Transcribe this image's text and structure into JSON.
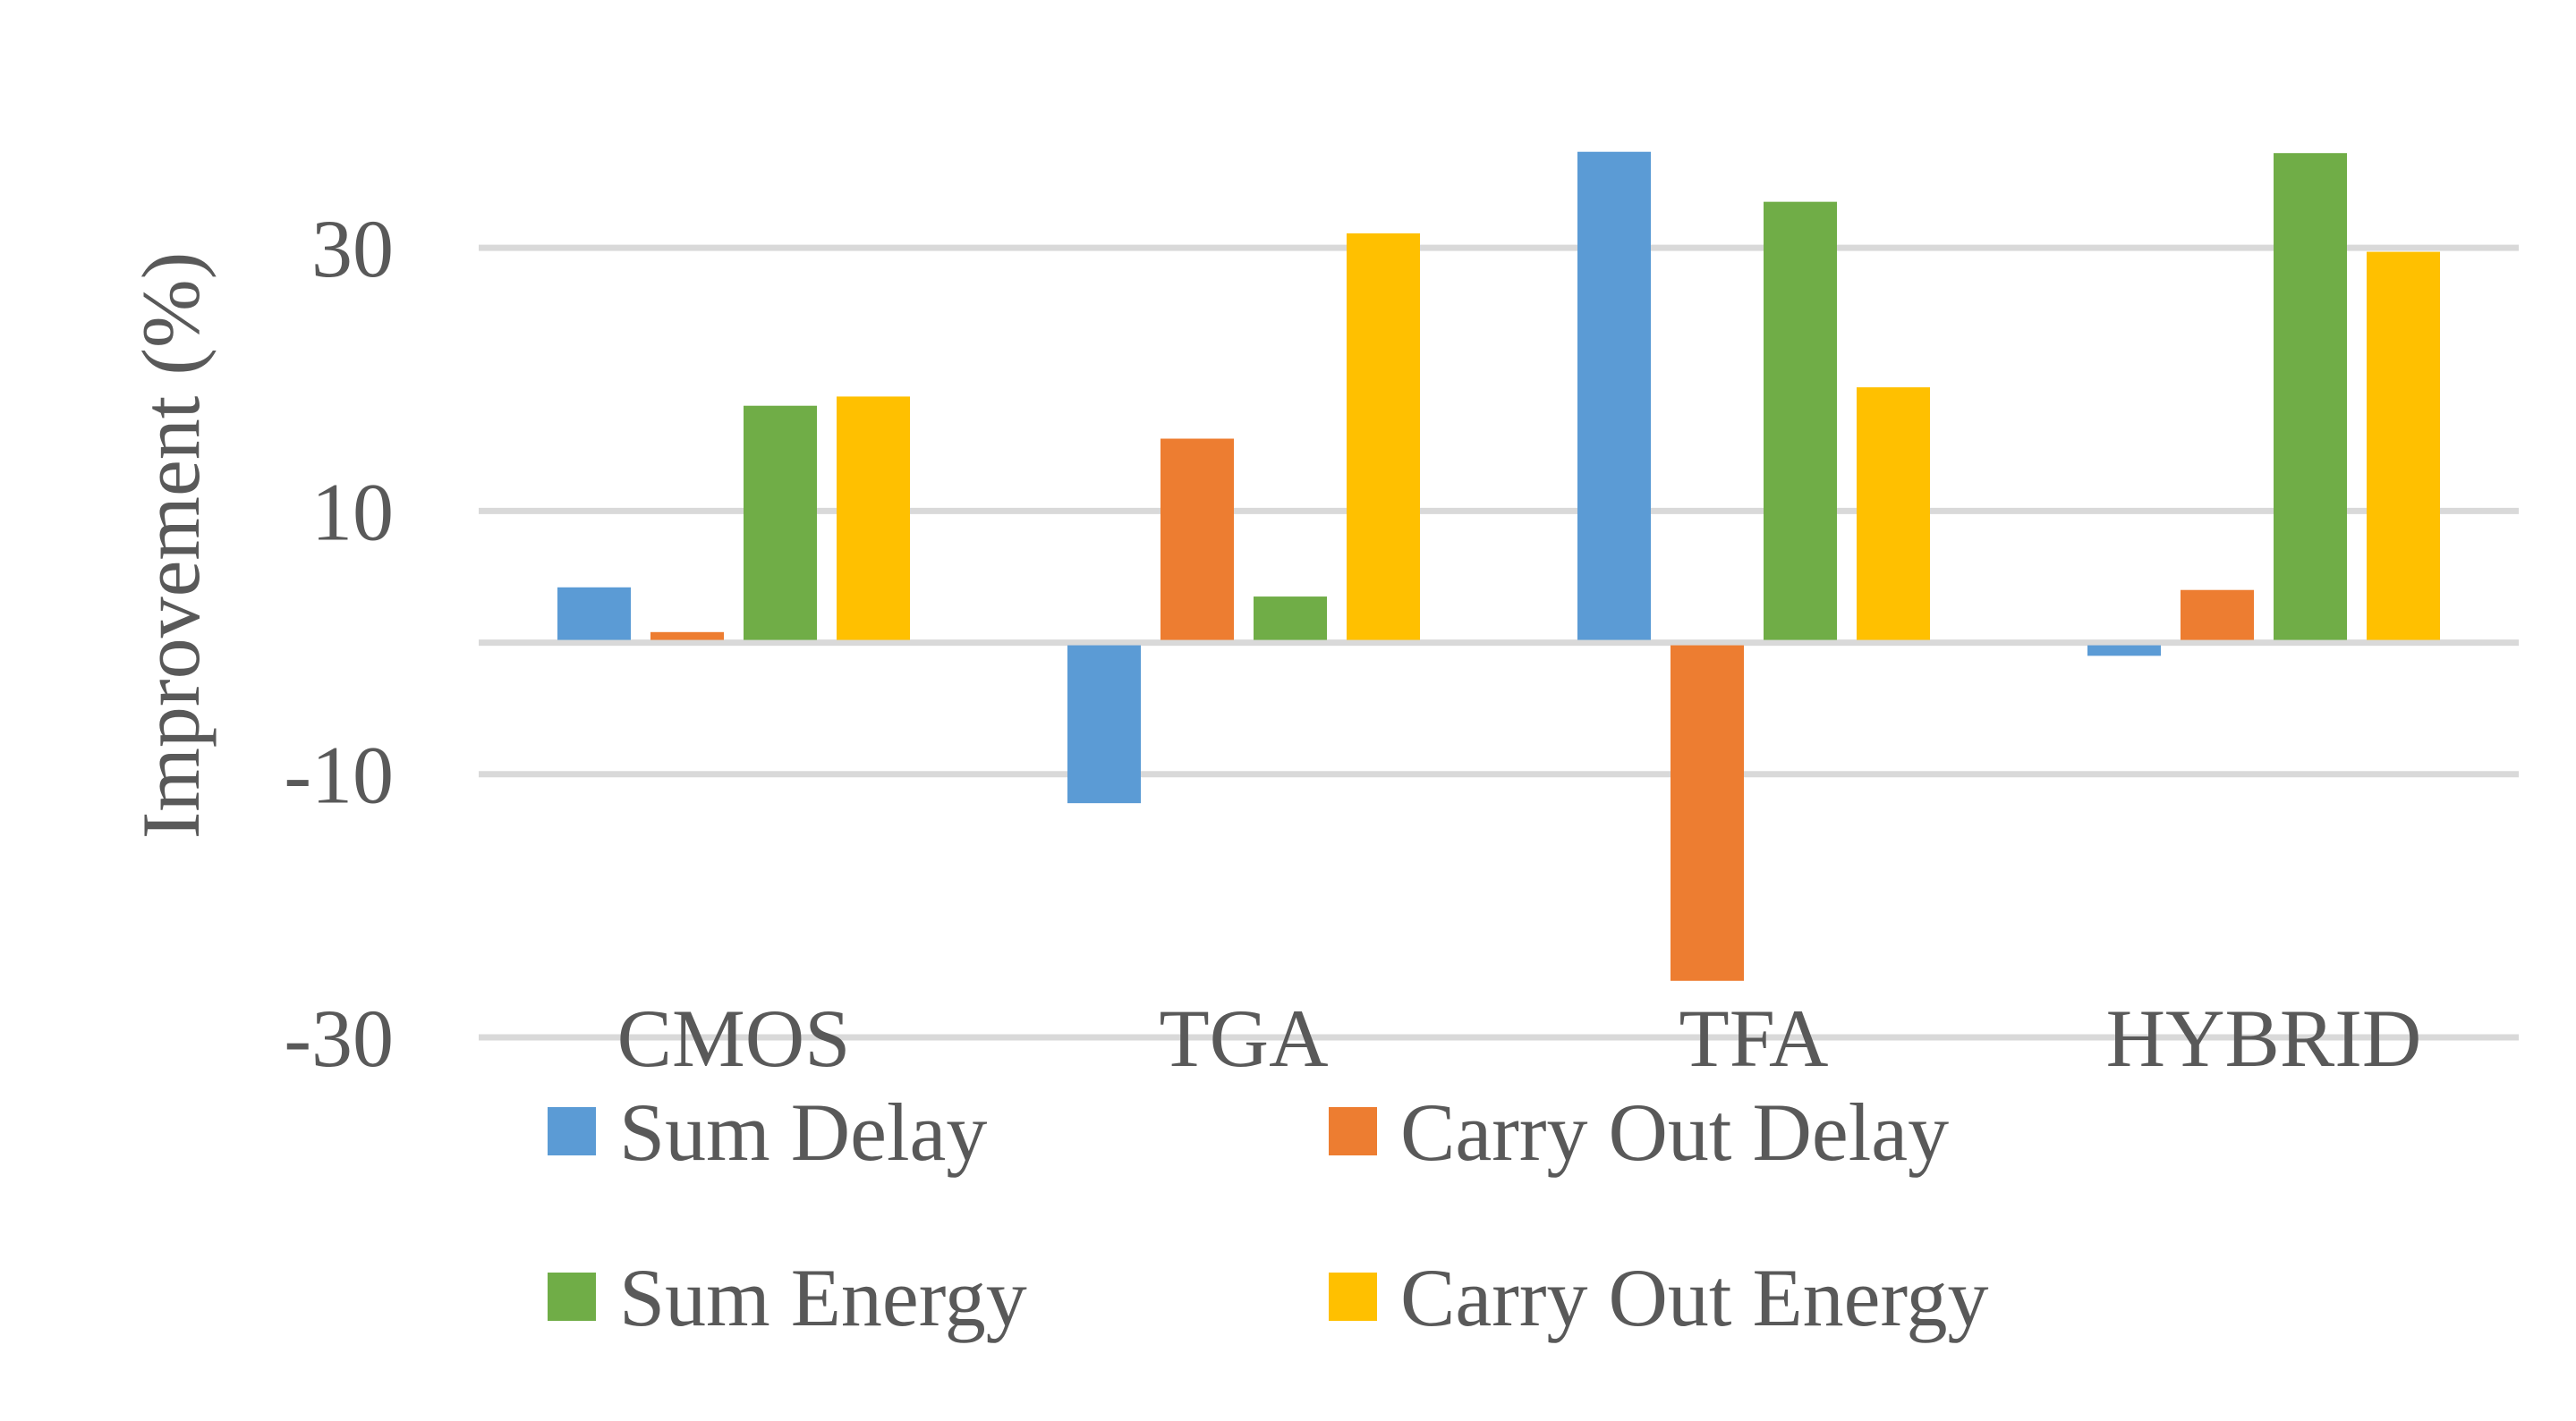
{
  "chart_data": {
    "type": "bar",
    "title": "",
    "xlabel": "",
    "ylabel": "Improvement (%)",
    "ylim": [
      -30,
      40
    ],
    "yticks": [
      -30,
      -10,
      10,
      30
    ],
    "grid": true,
    "legend_position": "bottom",
    "categories": [
      "CMOS",
      "TGA",
      "TFA",
      "HYBRID"
    ],
    "series": [
      {
        "name": "Sum Delay",
        "color": "#5b9bd5",
        "values": [
          4.2,
          -12.0,
          37.3,
          -0.8
        ]
      },
      {
        "name": "Carry Out Delay",
        "color": "#ed7d31",
        "values": [
          0.8,
          15.5,
          -25.5,
          4.0
        ]
      },
      {
        "name": "Sum Energy",
        "color": "#70ad47",
        "values": [
          18.0,
          3.5,
          33.5,
          37.2
        ]
      },
      {
        "name": "Carry Out Energy",
        "color": "#ffc000",
        "values": [
          18.7,
          31.1,
          19.4,
          29.7
        ]
      }
    ]
  }
}
